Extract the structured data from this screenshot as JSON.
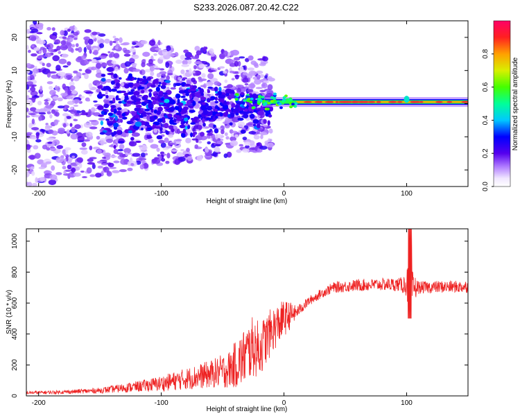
{
  "title": "S233.2026.087.20.42.C22",
  "chart_data": [
    {
      "type": "heatmap",
      "name": "spectrogram",
      "xlabel": "Height of straight line (km)",
      "ylabel": "Frequency (Hz)",
      "xlim": [
        -210,
        150
      ],
      "ylim": [
        -25,
        25
      ],
      "xticks": [
        -200,
        -100,
        0,
        100
      ],
      "yticks": [
        -20,
        -10,
        0,
        10,
        20
      ],
      "colorbar": {
        "label": "Normalized spectral amplitude",
        "range": [
          0,
          1
        ],
        "ticks": [
          0.0,
          0.2,
          0.4,
          0.6,
          0.8
        ]
      },
      "description_points": {
        "steady_line_x": [
          10,
          150
        ],
        "steady_line_freq_hz": 0.5,
        "steady_line_amplitude": 0.95,
        "scatter_region_x": [
          -210,
          -15
        ],
        "scatter_freq_spread_hz": 25
      }
    },
    {
      "type": "line",
      "name": "snr",
      "xlabel": "Height of straight line (km)",
      "ylabel": "SNR (10 * v/v)",
      "xlim": [
        -210,
        150
      ],
      "ylim": [
        0,
        1080
      ],
      "xticks": [
        -200,
        -100,
        0,
        100
      ],
      "yticks": [
        0,
        200,
        400,
        600,
        800,
        1000
      ],
      "color": "#ee2222",
      "envelope": {
        "x": [
          -210,
          -180,
          -150,
          -120,
          -100,
          -80,
          -60,
          -45,
          -35,
          -25,
          -20,
          -10,
          0,
          5,
          10,
          20,
          30,
          40,
          60,
          80,
          95,
          100,
          103,
          105,
          110,
          130,
          150
        ],
        "mean": [
          20,
          25,
          35,
          60,
          80,
          110,
          140,
          170,
          230,
          320,
          300,
          420,
          500,
          520,
          540,
          610,
          660,
          700,
          715,
          720,
          720,
          720,
          700,
          700,
          700,
          705,
          705
        ],
        "noise": [
          10,
          12,
          18,
          35,
          50,
          70,
          90,
          120,
          180,
          200,
          180,
          150,
          120,
          90,
          40,
          30,
          30,
          35,
          40,
          40,
          45,
          80,
          300,
          100,
          40,
          40,
          40
        ]
      }
    }
  ]
}
